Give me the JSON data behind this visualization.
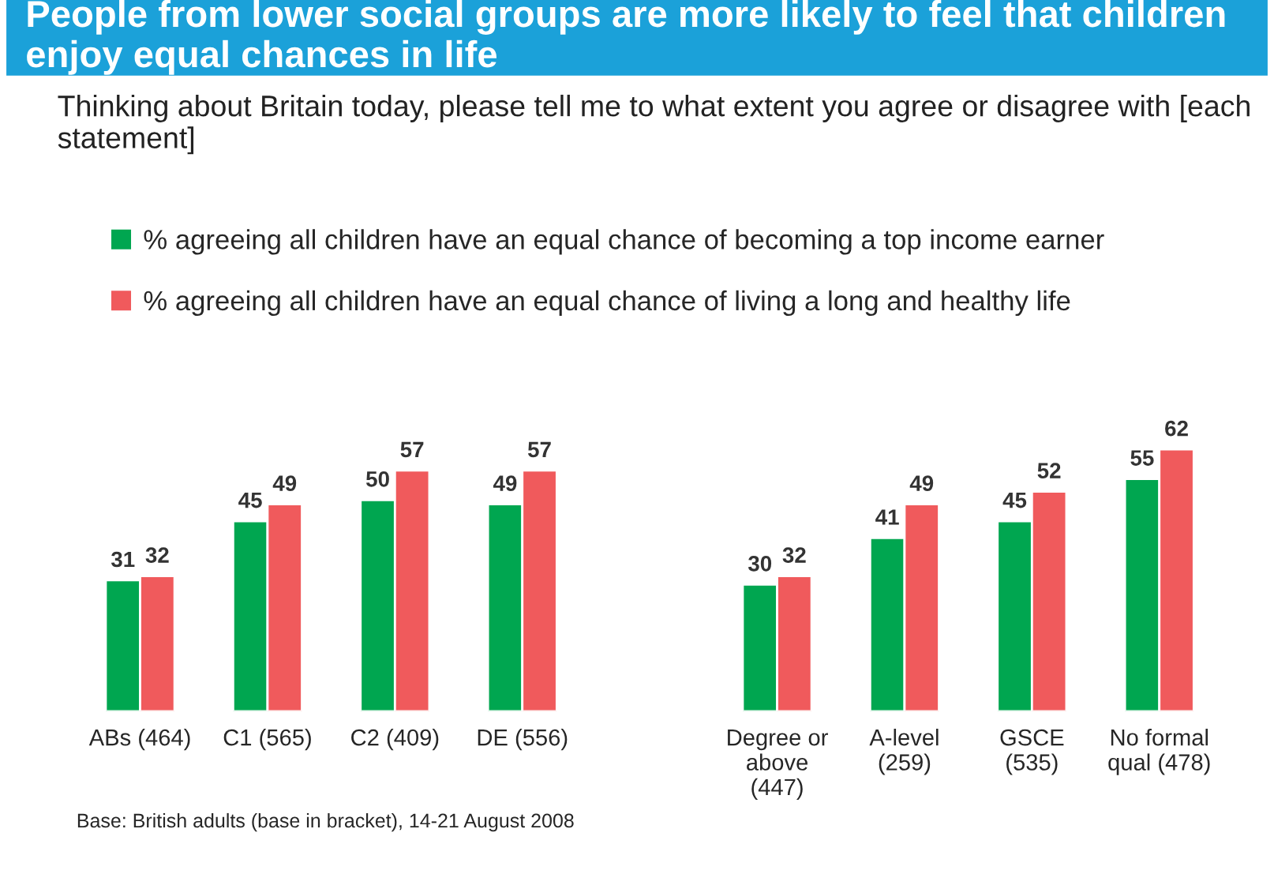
{
  "chart_data": {
    "type": "bar",
    "title": "People from lower social groups are more likely to feel that children enjoy equal chances in life",
    "subtitle": "Thinking about Britain today, please tell me to what extent you agree or disagree with [each statement]",
    "categories": [
      "ABs (464)",
      "C1 (565)",
      "C2 (409)",
      "DE (556)",
      null,
      "Degree or\nabove\n(447)",
      "A-level\n(259)",
      "GSCE\n(535)",
      "No formal\nqual (478)"
    ],
    "series": [
      {
        "name": "% agreeing all children have an equal chance of becoming a top income earner",
        "color": "#00a650",
        "values": [
          31,
          45,
          50,
          49,
          null,
          30,
          41,
          45,
          55
        ]
      },
      {
        "name": "% agreeing all children have an equal chance of living a long and healthy life",
        "color": "#f05a5c",
        "values": [
          32,
          49,
          57,
          57,
          null,
          32,
          49,
          52,
          62
        ]
      }
    ],
    "data_labels": true,
    "legend": "top left",
    "annotations": [
      "Base: British adults (base in bracket), 14-21 August 2008"
    ]
  }
}
